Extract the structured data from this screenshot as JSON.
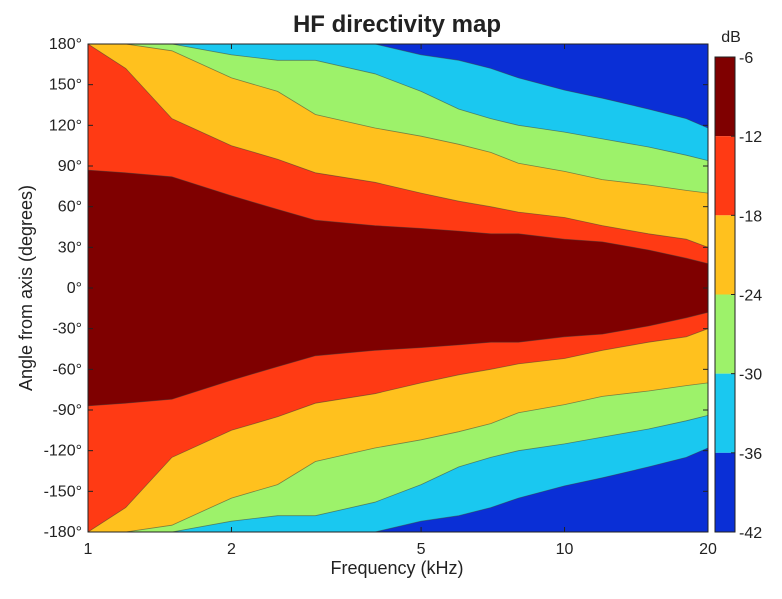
{
  "chart_data": {
    "type": "heatmap",
    "title": "HF directivity map",
    "xlabel": "Frequency (kHz)",
    "ylabel": "Angle from axis (degrees)",
    "x_scale": "log",
    "xlim": [
      1,
      20
    ],
    "ylim": [
      -180,
      180
    ],
    "x_ticks": [
      {
        "value": 1,
        "label": "1"
      },
      {
        "value": 2,
        "label": "2"
      },
      {
        "value": 5,
        "label": "5"
      },
      {
        "value": 10,
        "label": "10"
      },
      {
        "value": 20,
        "label": "20"
      }
    ],
    "y_ticks": [
      {
        "value": 180,
        "label": "180°"
      },
      {
        "value": 150,
        "label": "150°"
      },
      {
        "value": 120,
        "label": "120°"
      },
      {
        "value": 90,
        "label": "90°"
      },
      {
        "value": 60,
        "label": "60°"
      },
      {
        "value": 30,
        "label": "30°"
      },
      {
        "value": 0,
        "label": "0°"
      },
      {
        "value": -30,
        "label": "-30°"
      },
      {
        "value": -60,
        "label": "-60°"
      },
      {
        "value": -90,
        "label": "-90°"
      },
      {
        "value": -120,
        "label": "-120°"
      },
      {
        "value": -150,
        "label": "-150°"
      },
      {
        "value": -180,
        "label": "-180°"
      }
    ],
    "colorbar": {
      "unit_label": "dB",
      "range": [
        -42,
        -6
      ],
      "ticks": [
        {
          "value": -6,
          "label": "-6"
        },
        {
          "value": -12,
          "label": "-12"
        },
        {
          "value": -18,
          "label": "-18"
        },
        {
          "value": -24,
          "label": "-24"
        },
        {
          "value": -30,
          "label": "-30"
        },
        {
          "value": -36,
          "label": "-36"
        },
        {
          "value": -42,
          "label": "-42"
        }
      ],
      "levels": [
        {
          "min": -12,
          "max": -6,
          "color": "#7f0000"
        },
        {
          "min": -18,
          "max": -12,
          "color": "#ff3a14"
        },
        {
          "min": -24,
          "max": -18,
          "color": "#ffc11e"
        },
        {
          "min": -30,
          "max": -24,
          "color": "#9df26a"
        },
        {
          "min": -36,
          "max": -30,
          "color": "#1ac8f0"
        },
        {
          "min": -42,
          "max": -36,
          "color": "#0a2fd6"
        }
      ]
    },
    "contour_boundaries_deg": {
      "frequencies_khz": [
        1,
        1.2,
        1.5,
        2,
        2.5,
        3,
        4,
        5,
        6,
        7,
        8,
        10,
        12,
        15,
        18,
        20
      ],
      "db_-12": [
        87,
        85,
        82,
        68,
        58,
        50,
        46,
        44,
        42,
        40,
        40,
        36,
        34,
        28,
        22,
        18
      ],
      "db_-18": [
        180,
        162,
        125,
        105,
        95,
        85,
        78,
        70,
        64,
        60,
        56,
        52,
        46,
        40,
        36,
        30
      ],
      "db_-24": [
        180,
        180,
        175,
        155,
        145,
        128,
        118,
        112,
        106,
        100,
        92,
        86,
        80,
        76,
        72,
        70
      ],
      "db_-30": [
        180,
        180,
        180,
        172,
        168,
        168,
        158,
        145,
        132,
        125,
        120,
        115,
        110,
        104,
        98,
        94
      ],
      "db_-36": [
        180,
        180,
        180,
        180,
        180,
        180,
        180,
        172,
        168,
        162,
        155,
        146,
        140,
        132,
        125,
        118
      ]
    }
  },
  "colors": {
    "background": "#ffffff",
    "frame": "#222222"
  }
}
